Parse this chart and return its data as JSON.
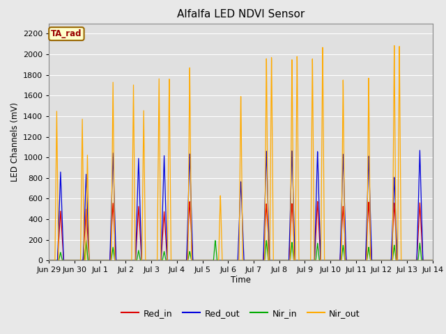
{
  "title": "Alfalfa LED NDVI Sensor",
  "ylabel": "LED Channels (mV)",
  "xlabel": "Time",
  "annotation_text": "TA_rad",
  "annotation_box_facecolor": "#ffffcc",
  "annotation_box_edgecolor": "#996600",
  "ylim": [
    0,
    2300
  ],
  "yticks": [
    0,
    200,
    400,
    600,
    800,
    1000,
    1200,
    1400,
    1600,
    1800,
    2000,
    2200
  ],
  "background_color": "#e8e8e8",
  "plot_bg_color": "#e0e0e0",
  "grid_color": "#ffffff",
  "colors": {
    "Red_in": "#dd0000",
    "Red_out": "#0000dd",
    "Nir_in": "#00aa00",
    "Nir_out": "#ffaa00"
  },
  "series_names": [
    "Red_in",
    "Red_out",
    "Nir_in",
    "Nir_out"
  ],
  "x_tick_labels": [
    "Jun 29",
    "Jun 30",
    "Jul 1",
    "Jul 2",
    "Jul 3",
    "Jul 4",
    "Jul 5",
    "Jul 6",
    "Jul 7",
    "Jul 8",
    "Jul 9",
    "Jul 10",
    "Jul 11",
    "Jul 12",
    "Jul 13",
    "Jul 14"
  ],
  "x_tick_positions": [
    0,
    1,
    2,
    3,
    4,
    5,
    6,
    7,
    8,
    9,
    10,
    11,
    12,
    13,
    14,
    15
  ],
  "xlim": [
    0,
    15
  ]
}
